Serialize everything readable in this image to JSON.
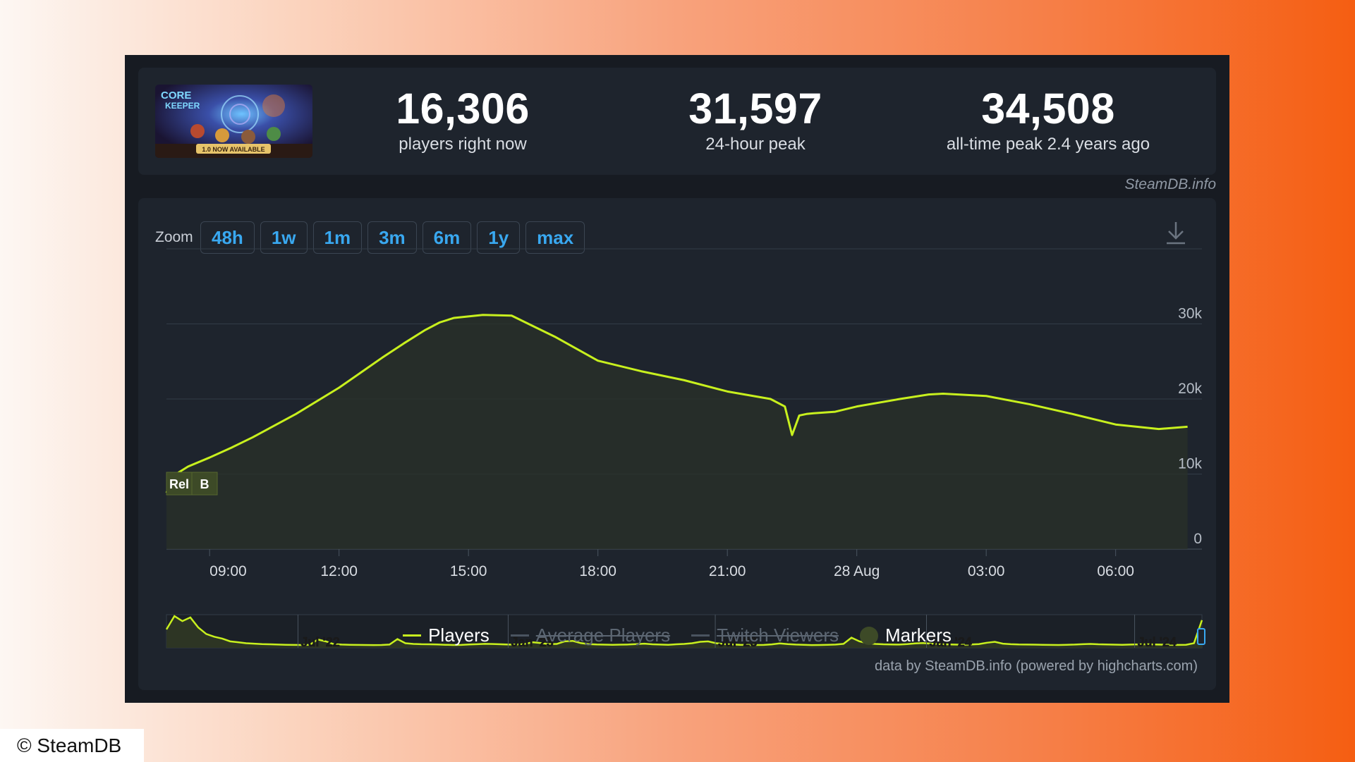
{
  "stats": {
    "players_now_value": "16,306",
    "players_now_label": "players right now",
    "peak24_value": "31,597",
    "peak24_label": "24-hour peak",
    "alltime_value": "34,508",
    "alltime_label": "all-time peak 2.4 years ago"
  },
  "thumbnail": {
    "logo_text_1": "CORE",
    "logo_text_2": "KEEPER",
    "banner_text": "1.0 NOW AVAILABLE"
  },
  "site_credit": "SteamDB.info",
  "zoom": {
    "label": "Zoom",
    "buttons": [
      "48h",
      "1w",
      "1m",
      "3m",
      "6m",
      "1y",
      "max"
    ]
  },
  "icons": {
    "download": "download-icon"
  },
  "colors": {
    "players_line": "#c8f01e",
    "zoom_text": "#39a8f0",
    "marker_fill": "#3d4a27",
    "card_bg": "#1e242d",
    "frame_bg": "#171b22"
  },
  "chart_data": {
    "type": "area",
    "series": [
      {
        "name": "Players",
        "x": [
          "08:00",
          "08:10",
          "08:30",
          "09:00",
          "09:30",
          "10:00",
          "11:00",
          "12:00",
          "13:00",
          "13:30",
          "14:00",
          "14:20",
          "14:40",
          "15:00",
          "15:20",
          "16:00",
          "17:00",
          "18:00",
          "19:00",
          "20:00",
          "21:00",
          "22:00",
          "22:20",
          "22:30",
          "22:40",
          "22:50",
          "23:00",
          "23:30",
          "00:00",
          "01:00",
          "01:40",
          "02:00",
          "03:00",
          "04:00",
          "05:00",
          "06:00",
          "07:00",
          "07:40"
        ],
        "y": [
          7500,
          9800,
          11000,
          12200,
          13500,
          14900,
          18000,
          21500,
          25500,
          27400,
          29200,
          30200,
          30800,
          31000,
          31200,
          31100,
          28300,
          25100,
          23700,
          22500,
          21000,
          20000,
          19000,
          15200,
          17800,
          18000,
          18100,
          18300,
          19000,
          20000,
          20600,
          20700,
          20400,
          19300,
          18000,
          16600,
          16000,
          16300
        ]
      }
    ],
    "x_ticks": [
      "09:00",
      "12:00",
      "15:00",
      "18:00",
      "21:00",
      "28 Aug",
      "03:00",
      "06:00"
    ],
    "y_ticks": [
      "0",
      "10k",
      "20k",
      "30k"
    ],
    "ylim": [
      0,
      40000
    ],
    "grid": true,
    "markers": [
      "Rel",
      "B"
    ],
    "navigator": {
      "labels": [
        "Jul '22",
        "Jan '23",
        "Jul '23",
        "Jan '24",
        "Jul '24"
      ],
      "values": [
        20000,
        34500,
        29000,
        33000,
        22000,
        15000,
        12000,
        10000,
        7000,
        6000,
        5000,
        4500,
        4000,
        3800,
        3500,
        3300,
        3200,
        3100,
        3300,
        9000,
        7000,
        4000,
        3500,
        3300,
        3200,
        3100,
        3000,
        3100,
        3500,
        9500,
        5000,
        4200,
        3900,
        3800,
        3600,
        3300,
        3100,
        3200,
        3600,
        3900,
        4300,
        4100,
        3800,
        3500,
        3600,
        4200,
        6000,
        5200,
        4000,
        4200,
        7000,
        7500,
        5200,
        4000,
        3600,
        3400,
        3300,
        3400,
        3600,
        4000,
        4500,
        3800,
        3500,
        3300,
        3800,
        4200,
        5000,
        6500,
        7000,
        5000,
        4000,
        3600,
        3300,
        3200,
        3100,
        3200,
        3700,
        4800,
        4000,
        3500,
        3300,
        3000,
        3100,
        3300,
        3500,
        4300,
        11000,
        7000,
        5000,
        4200,
        3800,
        3600,
        3500,
        4000,
        4800,
        5200,
        4500,
        4000,
        3700,
        3500,
        3300,
        3600,
        4000,
        5500,
        6500,
        4500,
        3900,
        3600,
        3500,
        3400,
        3300,
        3200,
        3100,
        3300,
        3500,
        3900,
        4200,
        3800,
        3600,
        3400,
        3300,
        3500,
        3700,
        3900,
        3600,
        3400,
        3300,
        3200,
        3300,
        5000,
        30000
      ],
      "ylim": [
        0,
        36000
      ]
    },
    "legend": [
      {
        "name": "Players",
        "enabled": true
      },
      {
        "name": "Average Players",
        "enabled": false
      },
      {
        "name": "Twitch Viewers",
        "enabled": false
      },
      {
        "name": "Markers",
        "enabled": true
      }
    ],
    "legend_placement": "bottom-center"
  },
  "credit_bottom": "data by SteamDB.info (powered by highcharts.com)",
  "copyright": "© SteamDB"
}
